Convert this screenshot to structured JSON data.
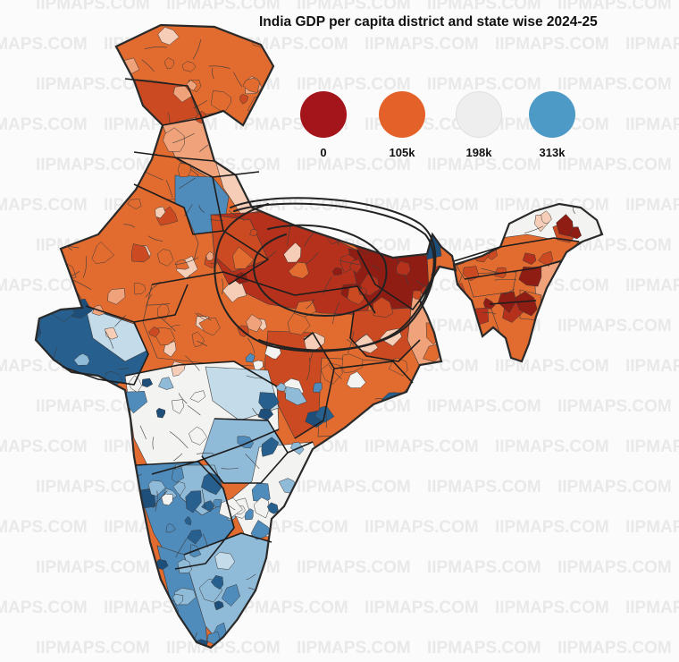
{
  "title": "India GDP per capita district and state wise 2024-25",
  "watermark": "IIPMAPS.COM",
  "legend": [
    {
      "label": "0",
      "color": "#a3151a"
    },
    {
      "label": "105k",
      "color": "#e4622a"
    },
    {
      "label": "198k",
      "color": "#eeeeee"
    },
    {
      "label": "313k",
      "color": "#4e9ac6"
    }
  ],
  "palette": {
    "dark_red": "#8f1d14",
    "red": "#b5311c",
    "red_orange": "#cc4a22",
    "orange": "#e26b30",
    "light_orange": "#f0a27a",
    "pale_orange": "#f6cdb6",
    "near_white": "#f3f3f1",
    "pale_blue": "#c4dcea",
    "light_blue": "#8fbad8",
    "blue": "#4f8bbb",
    "dark_blue": "#27608f",
    "navy": "#1e4f7a",
    "border": "#333333",
    "annotation": "#222222"
  }
}
